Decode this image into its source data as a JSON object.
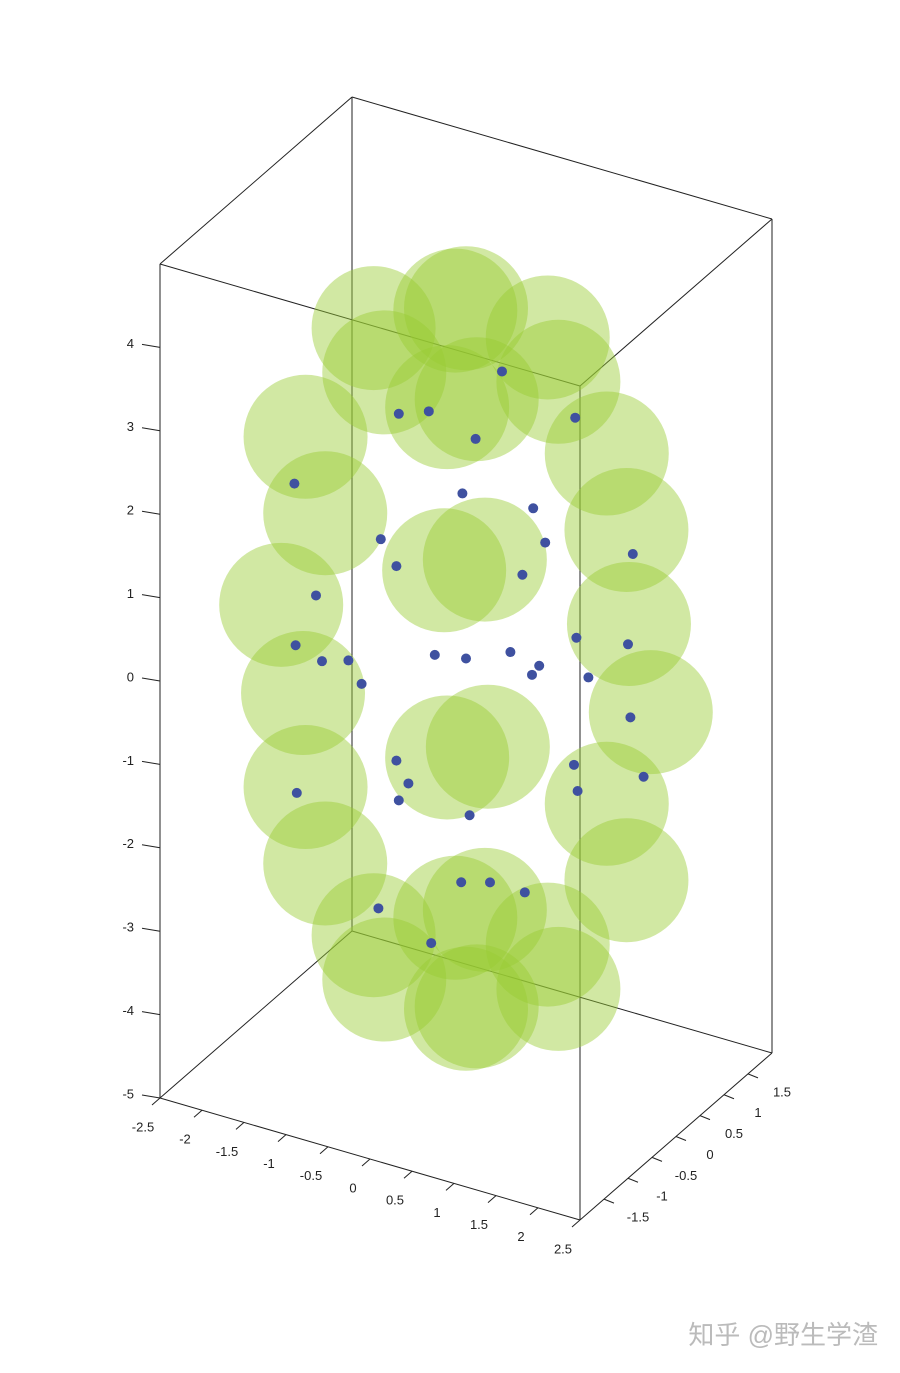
{
  "chart_data": {
    "type": "scatter3d",
    "xlim": [
      -2.5,
      2.5
    ],
    "ylim": [
      -2,
      2
    ],
    "zlim": [
      -5,
      5
    ],
    "xticks": [
      -2.5,
      -2,
      -1.5,
      -1,
      -0.5,
      0,
      0.5,
      1,
      1.5,
      2,
      2.5
    ],
    "yticks": [
      -1.5,
      -1,
      -0.5,
      0,
      0.5,
      1,
      1.5
    ],
    "zticks": [
      -5,
      -4,
      -3,
      -2,
      -1,
      0,
      1,
      2,
      3,
      4
    ],
    "grid": false,
    "series": [
      {
        "color": "#9acd32",
        "x": [
          2.2,
          1.1,
          -1.1,
          -2.2,
          -1.1,
          1.1,
          1.91,
          0.95,
          -0.95,
          -1.91,
          -0.95,
          0.95,
          1.91,
          0.95,
          -0.95,
          -1.91,
          -0.95,
          0.95,
          1.1,
          0.55,
          -0.55,
          -1.1,
          -0.55,
          0.55,
          1.1,
          0.55,
          -0.55,
          -1.1,
          -0.55,
          0.55,
          0,
          0
        ],
        "y": [
          0,
          1.47,
          1.47,
          0,
          -1.47,
          -1.47,
          0,
          1.27,
          1.27,
          0,
          -1.27,
          -1.27,
          0,
          1.27,
          1.27,
          0,
          -1.27,
          -1.27,
          0,
          0.74,
          0.74,
          0,
          -0.74,
          -0.74,
          0,
          0.74,
          0.74,
          0,
          -0.74,
          -0.74,
          0,
          0
        ],
        "z": [
          0,
          0,
          0,
          0,
          0,
          0,
          2.1,
          2.1,
          2.1,
          2.1,
          2.1,
          2.1,
          -2.1,
          -2.1,
          -2.1,
          -2.1,
          -2.1,
          -2.1,
          3.64,
          3.64,
          3.64,
          3.64,
          3.64,
          3.64,
          -3.64,
          -3.64,
          -3.64,
          -3.64,
          -3.64,
          -3.64,
          4.2,
          -4.2
        ]
      },
      {
        "color": "#3f51a0",
        "x": [
          0,
          0.5,
          -0.6,
          1.2,
          -1.3,
          0.8,
          -0.9,
          0.3,
          -0.2,
          1.5,
          -1.6,
          0.9,
          -0.7,
          0.2,
          -0.3,
          1.7,
          -1.7,
          1.4,
          -1.2,
          0.6,
          -0.5,
          1.9,
          -1.9,
          0.1,
          -0.1,
          1.1,
          -1.0,
          0.4,
          -0.4,
          1.6,
          -1.5,
          0.7,
          -0.8,
          1.3,
          -1.4,
          0,
          0,
          1.8,
          -1.8,
          0.5
        ],
        "y": [
          0,
          0.3,
          -0.4,
          0.2,
          0.5,
          -0.9,
          0.8,
          1,
          -1.1,
          -0.3,
          -0.2,
          0.7,
          -0.6,
          0.4,
          -0.2,
          0.5,
          -0.6,
          -0.8,
          0.9,
          1.2,
          -1.3,
          0.1,
          0.2,
          -0.1,
          0.1,
          -1,
          1.1,
          -0.5,
          0.6,
          0.9,
          -0.9,
          0,
          0,
          1.1,
          -1.1,
          1.4,
          -1.4,
          -0.6,
          0.7,
          0.5
        ],
        "z": [
          0,
          1,
          -1.2,
          0.5,
          0.8,
          -2,
          2.3,
          -0.5,
          1.6,
          -1,
          -0.4,
          2.8,
          -2.9,
          3.3,
          -3.4,
          1.5,
          1.9,
          2.2,
          -2.3,
          -1.7,
          0.2,
          -0.2,
          0.1,
          -1.8,
          1.9,
          0.9,
          -0.8,
          3.0,
          -3.1,
          -1.4,
          -1.6,
          -2.6,
          2.7,
          0,
          0.3,
          1.1,
          -1.0,
          0.6,
          -0.9,
          -0.3
        ]
      }
    ]
  },
  "watermark": "知乎 @野生学渣"
}
